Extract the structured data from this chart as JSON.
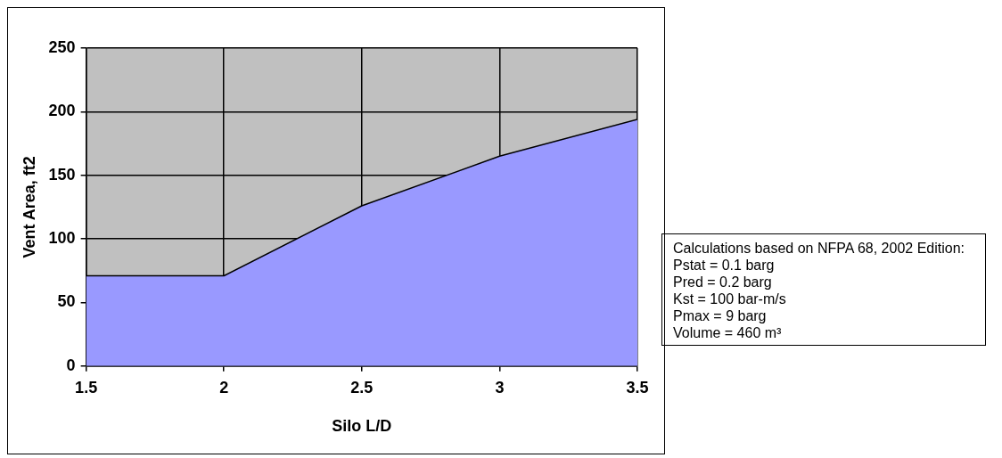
{
  "chart_data": {
    "type": "area",
    "xlabel": "Silo L/D",
    "ylabel": "Vent Area, ft2",
    "x": [
      1.5,
      2,
      2.5,
      3,
      3.5
    ],
    "series": [
      {
        "color": "#9999ff",
        "values": [
          71,
          71,
          126,
          165,
          194
        ]
      }
    ],
    "xlim": [
      1.5,
      3.5
    ],
    "xticks": [
      1.5,
      2,
      2.5,
      3,
      3.5
    ],
    "ylim": [
      0,
      250
    ],
    "yticks": [
      0,
      50,
      100,
      150,
      200,
      250
    ],
    "grid": true,
    "legend": false,
    "annotations": [
      "Calculations based on NFPA 68, 2002 Edition:\nPstat = 0.1 barg\nPred = 0.2 barg\nKst = 100 bar-m/s\nPmax = 9 barg\nVolume = 460 m³"
    ]
  }
}
